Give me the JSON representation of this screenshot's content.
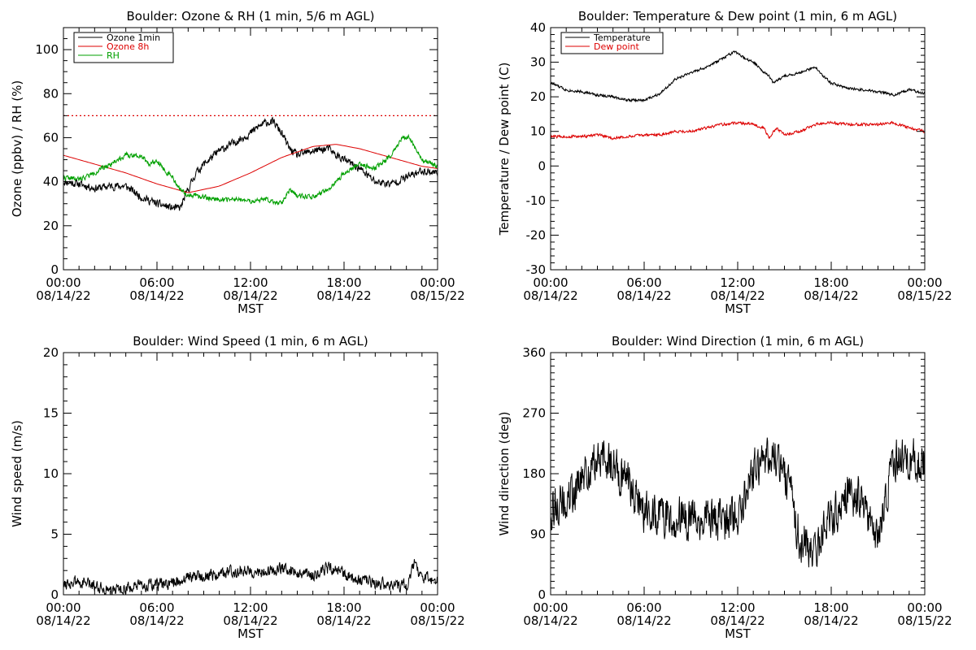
{
  "chart_data": [
    {
      "id": "ozone_rh",
      "type": "line",
      "title": "Boulder: Ozone & RH (1 min, 5/6 m AGL)",
      "ylabel": "Ozone (ppbv) / RH (%)",
      "xlabel": "MST",
      "ylim": [
        0,
        110
      ],
      "yticks": [
        0,
        20,
        40,
        60,
        80,
        100
      ],
      "y_minor_step": 5,
      "xlim_hours": [
        0,
        24
      ],
      "x_tick_hours": [
        0,
        6,
        12,
        18,
        24
      ],
      "x_tick_labels": [
        [
          "00:00",
          "08/14/22"
        ],
        [
          "06:00",
          "08/14/22"
        ],
        [
          "12:00",
          "08/14/22"
        ],
        [
          "18:00",
          "08/14/22"
        ],
        [
          "00:00",
          "08/15/22"
        ]
      ],
      "legend_position": "top-left",
      "reference_line": {
        "y": 70,
        "color": "#dd0000",
        "style": "dotted"
      },
      "series": [
        {
          "name": "Ozone 1min",
          "color": "#000000",
          "noise": 1.6,
          "seed": 11,
          "points": [
            [
              0,
              40
            ],
            [
              1,
              39
            ],
            [
              2,
              37
            ],
            [
              3,
              38
            ],
            [
              4,
              38
            ],
            [
              5,
              33
            ],
            [
              6,
              30
            ],
            [
              7,
              28
            ],
            [
              7.5,
              28
            ],
            [
              7.9,
              35
            ],
            [
              8.5,
              44
            ],
            [
              9,
              48
            ],
            [
              10,
              54
            ],
            [
              11,
              58
            ],
            [
              12,
              62
            ],
            [
              12.5,
              65
            ],
            [
              13,
              67
            ],
            [
              13.5,
              67
            ],
            [
              14,
              62
            ],
            [
              14.5,
              55
            ],
            [
              15,
              52
            ],
            [
              16,
              54
            ],
            [
              17,
              55
            ],
            [
              17.5,
              52
            ],
            [
              18,
              50
            ],
            [
              19,
              46
            ],
            [
              20,
              40
            ],
            [
              21,
              39
            ],
            [
              22,
              42
            ],
            [
              23,
              45
            ],
            [
              24,
              44
            ]
          ]
        },
        {
          "name": "Ozone 8h",
          "color": "#dd0000",
          "noise": 0,
          "seed": 0,
          "points": [
            [
              0,
              52
            ],
            [
              2,
              48
            ],
            [
              4,
              44
            ],
            [
              6,
              39
            ],
            [
              8,
              35
            ],
            [
              10,
              38
            ],
            [
              12,
              44
            ],
            [
              14,
              51
            ],
            [
              16,
              56
            ],
            [
              17.5,
              57
            ],
            [
              19,
              55
            ],
            [
              21,
              51
            ],
            [
              23,
              47
            ],
            [
              24,
              46
            ]
          ]
        },
        {
          "name": "RH",
          "color": "#00a000",
          "noise": 1.0,
          "seed": 22,
          "points": [
            [
              0,
              42
            ],
            [
              1,
              41
            ],
            [
              2,
              44
            ],
            [
              3,
              48
            ],
            [
              4,
              52
            ],
            [
              5,
              52
            ],
            [
              5.5,
              48
            ],
            [
              6,
              50
            ],
            [
              6.5,
              45
            ],
            [
              7,
              42
            ],
            [
              7.5,
              36
            ],
            [
              8,
              34
            ],
            [
              9,
              33
            ],
            [
              10,
              32
            ],
            [
              11,
              32
            ],
            [
              12,
              31
            ],
            [
              13,
              32
            ],
            [
              14,
              30
            ],
            [
              14.5,
              36
            ],
            [
              15,
              34
            ],
            [
              16,
              33
            ],
            [
              17,
              36
            ],
            [
              18,
              44
            ],
            [
              19,
              48
            ],
            [
              20,
              46
            ],
            [
              21,
              52
            ],
            [
              21.7,
              60
            ],
            [
              22.2,
              60
            ],
            [
              23,
              50
            ],
            [
              24,
              47
            ]
          ]
        }
      ]
    },
    {
      "id": "temp_dew",
      "type": "line",
      "title": "Boulder: Temperature & Dew point (1 min, 6 m AGL)",
      "ylabel": "Temperature / Dew point (C)",
      "xlabel": "MST",
      "ylim": [
        -30,
        40
      ],
      "yticks": [
        -30,
        -20,
        -10,
        0,
        10,
        20,
        30,
        40
      ],
      "y_minor_step": 2,
      "xlim_hours": [
        0,
        24
      ],
      "x_tick_hours": [
        0,
        6,
        12,
        18,
        24
      ],
      "x_tick_labels": [
        [
          "00:00",
          "08/14/22"
        ],
        [
          "06:00",
          "08/14/22"
        ],
        [
          "12:00",
          "08/14/22"
        ],
        [
          "18:00",
          "08/14/22"
        ],
        [
          "00:00",
          "08/15/22"
        ]
      ],
      "legend_position": "top-left",
      "series": [
        {
          "name": "Temperature",
          "color": "#000000",
          "noise": 0.35,
          "seed": 33,
          "points": [
            [
              0,
              24
            ],
            [
              1,
              22
            ],
            [
              2,
              21.5
            ],
            [
              3,
              20.5
            ],
            [
              4,
              20
            ],
            [
              5,
              19
            ],
            [
              6,
              19
            ],
            [
              7,
              21
            ],
            [
              8,
              25
            ],
            [
              9,
              27
            ],
            [
              10,
              28.5
            ],
            [
              11,
              31
            ],
            [
              11.8,
              33
            ],
            [
              12.5,
              31
            ],
            [
              13,
              30
            ],
            [
              14,
              26
            ],
            [
              14.3,
              24
            ],
            [
              15,
              26
            ],
            [
              16,
              27
            ],
            [
              17,
              28.5
            ],
            [
              17.5,
              26
            ],
            [
              18,
              24
            ],
            [
              19,
              22.5
            ],
            [
              20,
              22
            ],
            [
              21,
              21.5
            ],
            [
              22,
              20.5
            ],
            [
              23,
              22
            ],
            [
              24,
              21
            ]
          ]
        },
        {
          "name": "Dew point",
          "color": "#dd0000",
          "noise": 0.35,
          "seed": 44,
          "points": [
            [
              0,
              8.5
            ],
            [
              2,
              8.5
            ],
            [
              3,
              9
            ],
            [
              4,
              8
            ],
            [
              5,
              8.5
            ],
            [
              6,
              9
            ],
            [
              7,
              9
            ],
            [
              8,
              10
            ],
            [
              9,
              10
            ],
            [
              10,
              11
            ],
            [
              11,
              12
            ],
            [
              12,
              12.5
            ],
            [
              13,
              12
            ],
            [
              13.7,
              11
            ],
            [
              14,
              8
            ],
            [
              14.5,
              11
            ],
            [
              15,
              9
            ],
            [
              16,
              10
            ],
            [
              17,
              12
            ],
            [
              18,
              12.5
            ],
            [
              19,
              12
            ],
            [
              20,
              12
            ],
            [
              21,
              12
            ],
            [
              22,
              12.5
            ],
            [
              23,
              11
            ],
            [
              24,
              10
            ]
          ]
        }
      ]
    },
    {
      "id": "wind_speed",
      "type": "line",
      "title": "Boulder: Wind Speed (1 min, 6 m AGL)",
      "ylabel": "Wind speed (m/s)",
      "xlabel": "MST",
      "ylim": [
        0,
        20
      ],
      "yticks": [
        0,
        5,
        10,
        15,
        20
      ],
      "y_minor_step": 1,
      "xlim_hours": [
        0,
        24
      ],
      "x_tick_hours": [
        0,
        6,
        12,
        18,
        24
      ],
      "x_tick_labels": [
        [
          "00:00",
          "08/14/22"
        ],
        [
          "06:00",
          "08/14/22"
        ],
        [
          "12:00",
          "08/14/22"
        ],
        [
          "18:00",
          "08/14/22"
        ],
        [
          "00:00",
          "08/15/22"
        ]
      ],
      "series": [
        {
          "name": "",
          "color": "#000000",
          "noise": 0.45,
          "seed": 55,
          "clip_min": 0,
          "points": [
            [
              0,
              1
            ],
            [
              1,
              1
            ],
            [
              2,
              0.8
            ],
            [
              3,
              0.4
            ],
            [
              4,
              0.5
            ],
            [
              5,
              0.7
            ],
            [
              6,
              0.8
            ],
            [
              7,
              0.9
            ],
            [
              8,
              1.5
            ],
            [
              9,
              1.6
            ],
            [
              10,
              1.7
            ],
            [
              11,
              2
            ],
            [
              12,
              2
            ],
            [
              13,
              1.8
            ],
            [
              14,
              2.2
            ],
            [
              15,
              1.8
            ],
            [
              16,
              1.6
            ],
            [
              17,
              2.2
            ],
            [
              18,
              1.8
            ],
            [
              19,
              1.2
            ],
            [
              20,
              1
            ],
            [
              21,
              0.8
            ],
            [
              22,
              0.7
            ],
            [
              22.5,
              2.5
            ],
            [
              23,
              1.5
            ],
            [
              24,
              1.2
            ]
          ]
        }
      ]
    },
    {
      "id": "wind_dir",
      "type": "line",
      "title": "Boulder: Wind Direction (1 min, 6 m AGL)",
      "ylabel": "Wind direction (deg)",
      "xlabel": "MST",
      "ylim": [
        0,
        360
      ],
      "yticks": [
        0,
        90,
        180,
        270,
        360
      ],
      "y_minor_step": 10,
      "xlim_hours": [
        0,
        24
      ],
      "x_tick_hours": [
        0,
        6,
        12,
        18,
        24
      ],
      "x_tick_labels": [
        [
          "00:00",
          "08/14/22"
        ],
        [
          "06:00",
          "08/14/22"
        ],
        [
          "12:00",
          "08/14/22"
        ],
        [
          "18:00",
          "08/14/22"
        ],
        [
          "00:00",
          "08/15/22"
        ]
      ],
      "series": [
        {
          "name": "",
          "color": "#000000",
          "noise": 28,
          "seed": 66,
          "clip_min": 0,
          "clip_max": 360,
          "points": [
            [
              0,
              130
            ],
            [
              1,
              135
            ],
            [
              2,
              170
            ],
            [
              3,
              200
            ],
            [
              4,
              195
            ],
            [
              5,
              170
            ],
            [
              6,
              125
            ],
            [
              7,
              120
            ],
            [
              8,
              115
            ],
            [
              9,
              110
            ],
            [
              10,
              115
            ],
            [
              11,
              105
            ],
            [
              12,
              120
            ],
            [
              13,
              185
            ],
            [
              14,
              210
            ],
            [
              15,
              190
            ],
            [
              16,
              80
            ],
            [
              17,
              70
            ],
            [
              18,
              110
            ],
            [
              19,
              150
            ],
            [
              20,
              140
            ],
            [
              21,
              80
            ],
            [
              22,
              200
            ],
            [
              23,
              210
            ],
            [
              24,
              190
            ]
          ]
        }
      ]
    }
  ]
}
